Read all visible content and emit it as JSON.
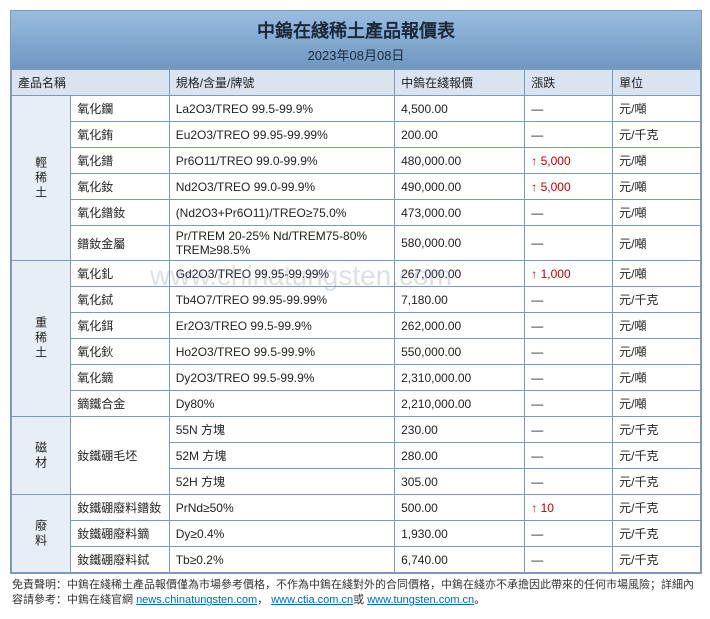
{
  "title": "中鎢在綫稀土產品報價表",
  "date": "2023年08月08日",
  "columns": [
    "產品名稱",
    "規格/含量/牌號",
    "中鎢在綫報價",
    "漲跌",
    "單位"
  ],
  "categories": [
    {
      "name": "輕稀土",
      "rows": [
        {
          "product": "氧化鑭",
          "spec": "La2O3/TREO 99.5-99.9%",
          "price": "4,500.00",
          "change": "—",
          "unit": "元/噸"
        },
        {
          "product": "氧化銪",
          "spec": "Eu2O3/TREO 99.95-99.99%",
          "price": "200.00",
          "change": "—",
          "unit": "元/千克"
        },
        {
          "product": "氧化鐠",
          "spec": "Pr6O11/TREO 99.0-99.9%",
          "price": "480,000.00",
          "change": "↑ 5,000",
          "unit": "元/噸"
        },
        {
          "product": "氧化釹",
          "spec": "Nd2O3/TREO 99.0-99.9%",
          "price": "490,000.00",
          "change": "↑ 5,000",
          "unit": "元/噸"
        },
        {
          "product": "氧化鐠釹",
          "spec": "(Nd2O3+Pr6O11)/TREO≥75.0%",
          "price": "473,000.00",
          "change": "—",
          "unit": "元/噸"
        },
        {
          "product": "鐠釹金屬",
          "spec": "Pr/TREM 20-25% Nd/TREM75-80% TREM≥98.5%",
          "price": "580,000.00",
          "change": "—",
          "unit": "元/噸"
        }
      ]
    },
    {
      "name": "重稀土",
      "rows": [
        {
          "product": "氧化釓",
          "spec": "Gd2O3/TREO 99.95-99.99%",
          "price": "267,000.00",
          "change": "↑ 1,000",
          "unit": "元/噸"
        },
        {
          "product": "氧化鋱",
          "spec": "Tb4O7/TREO 99.95-99.99%",
          "price": "7,180.00",
          "change": "—",
          "unit": "元/千克"
        },
        {
          "product": "氧化鉺",
          "spec": "Er2O3/TREO 99.5-99.9%",
          "price": "262,000.00",
          "change": "—",
          "unit": "元/噸"
        },
        {
          "product": "氧化鈥",
          "spec": "Ho2O3/TREO 99.5-99.9%",
          "price": "550,000.00",
          "change": "—",
          "unit": "元/噸"
        },
        {
          "product": "氧化鏑",
          "spec": "Dy2O3/TREO 99.5-99.9%",
          "price": "2,310,000.00",
          "change": "—",
          "unit": "元/噸"
        },
        {
          "product": "鏑鐵合金",
          "spec": "Dy80%",
          "price": "2,210,000.00",
          "change": "—",
          "unit": "元/噸"
        }
      ]
    },
    {
      "name": "磁材",
      "rows": [
        {
          "product": "釹鐵硼毛坯",
          "spec": "55N 方塊",
          "price": "230.00",
          "change": "—",
          "unit": "元/千克",
          "rowspan": 3
        },
        {
          "product": "",
          "spec": "52M 方塊",
          "price": "280.00",
          "change": "—",
          "unit": "元/千克"
        },
        {
          "product": "",
          "spec": "52H 方塊",
          "price": "305.00",
          "change": "—",
          "unit": "元/千克"
        }
      ]
    },
    {
      "name": "廢料",
      "rows": [
        {
          "product": "釹鐵硼廢料鐠釹",
          "spec": "PrNd≥50%",
          "price": "500.00",
          "change": "↑ 10",
          "unit": "元/千克"
        },
        {
          "product": "釹鐵硼廢料鏑",
          "spec": "Dy≥0.4%",
          "price": "1,930.00",
          "change": "—",
          "unit": "元/千克"
        },
        {
          "product": "釹鐵硼廢料鋱",
          "spec": "Tb≥0.2%",
          "price": "6,740.00",
          "change": "—",
          "unit": "元/千克"
        }
      ]
    }
  ],
  "disclaimer_prefix": "免責聲明：中鎢在綫稀土產品報價僅為市場參考價格，不作為中鎢在綫對外的合同價格，中鎢在綫亦不承擔因此帶來的任何市場風險；詳細內容請參考：中鎢在綫官網 ",
  "links": [
    "news.chinatungsten.com",
    "www.ctia.com.cn",
    "www.tungsten.com.cn"
  ],
  "link_sep": "，",
  "link_or": "或",
  "link_end": "。",
  "watermark": "www.chinatungsten.com",
  "colors": {
    "header_grad_top": "#9abde0",
    "header_grad_bot": "#6f97c0",
    "border": "#7a9abc",
    "th_bg": "#d9e4f0",
    "cat_bg": "#e8eef6"
  }
}
